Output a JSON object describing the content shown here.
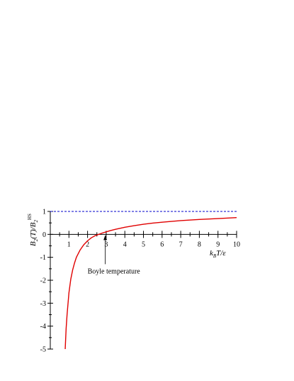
{
  "chart_data": {
    "type": "line",
    "xlabel": {
      "k": "k",
      "B": "B",
      "rest": "T/ε"
    },
    "ylabel": {
      "p1": "B",
      "p2": "2",
      "p3": "(T)/B",
      "p4": "2",
      "p5": "HS"
    },
    "xlim": [
      0,
      10
    ],
    "ylim": [
      -5,
      1
    ],
    "x_ticks": [
      "1",
      "2",
      "3",
      "4",
      "5",
      "6",
      "7",
      "8",
      "9",
      "10"
    ],
    "y_ticks": [
      "1",
      "0",
      "-1",
      "-2",
      "-3",
      "-4",
      "-5"
    ],
    "grid": false,
    "series": [
      {
        "style": "solid",
        "color": "#e00000",
        "x": [
          0.8,
          0.85,
          0.9,
          1.0,
          1.1,
          1.2,
          1.3,
          1.4,
          1.6,
          1.8,
          2.0,
          2.2,
          2.4,
          2.6,
          2.8,
          3.0,
          3.2,
          3.5,
          4.0,
          4.5,
          5.0,
          5.5,
          6.0,
          7.0,
          8.0,
          9.0,
          10.0
        ],
        "y": [
          -5.0,
          -4.1,
          -3.5,
          -2.55,
          -1.95,
          -1.55,
          -1.25,
          -1.0,
          -0.68,
          -0.45,
          -0.28,
          -0.15,
          -0.06,
          0.0,
          0.06,
          0.11,
          0.16,
          0.22,
          0.31,
          0.38,
          0.44,
          0.49,
          0.53,
          0.6,
          0.65,
          0.69,
          0.73
        ]
      },
      {
        "style": "dashed",
        "color": "#0000cc",
        "x": [
          0,
          10
        ],
        "y": [
          1,
          1
        ]
      }
    ],
    "annotations": [
      {
        "text": "Boyle temperature",
        "x": 2.95,
        "y": 0
      }
    ]
  }
}
